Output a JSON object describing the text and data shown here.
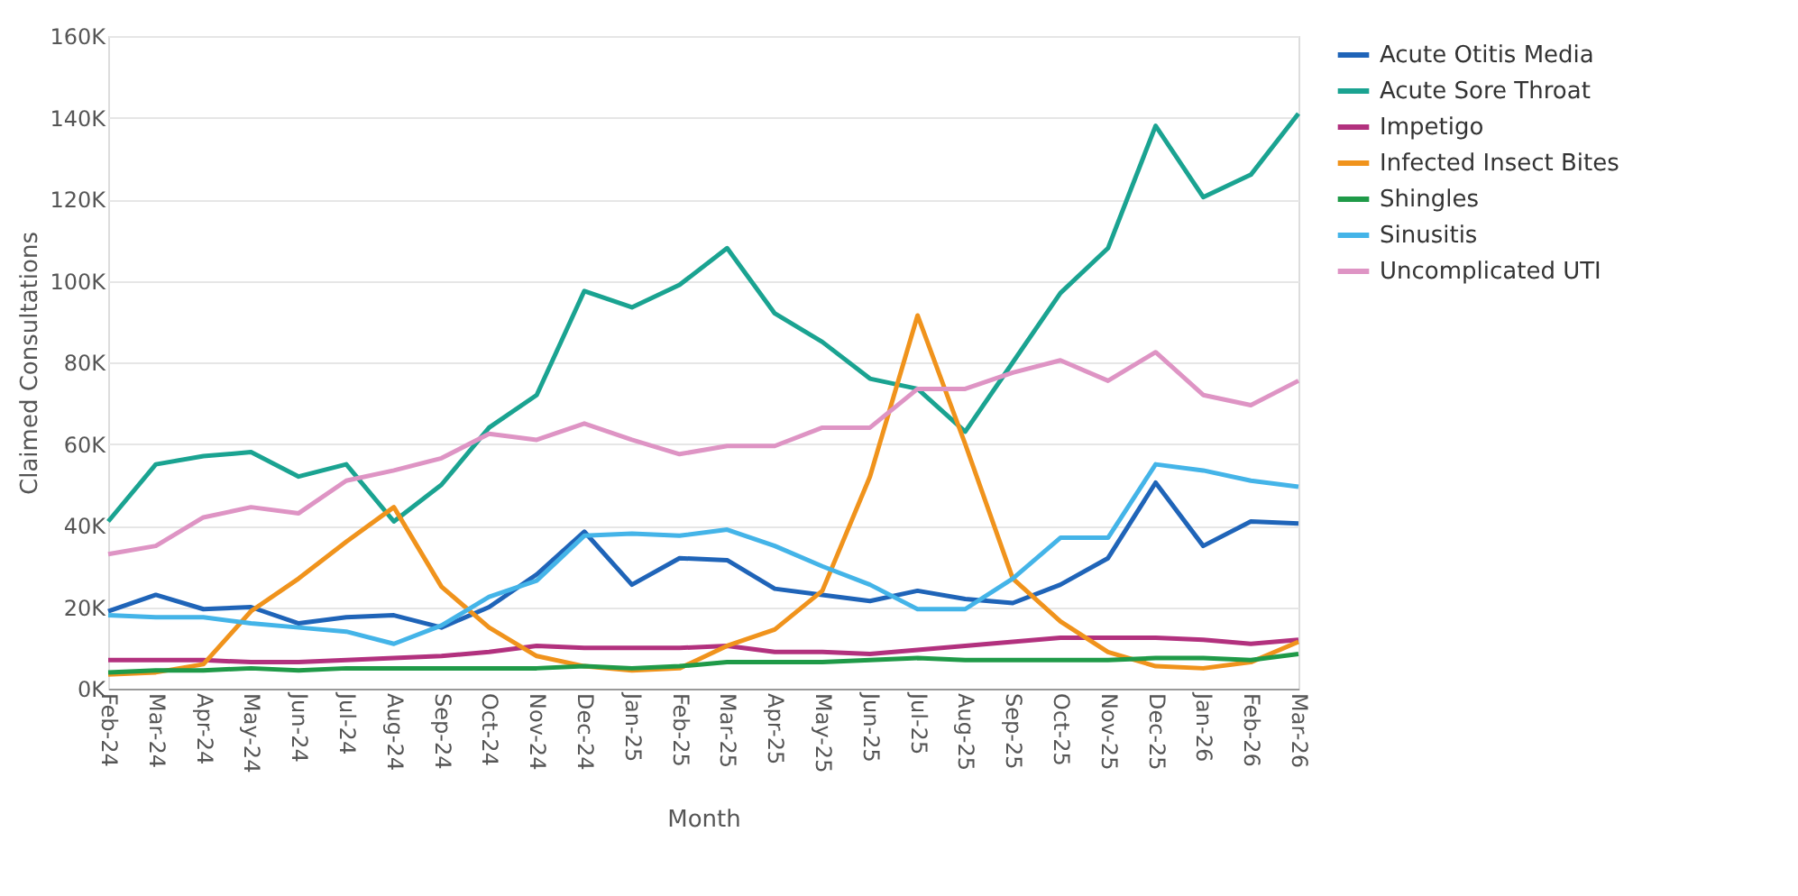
{
  "chart_data": {
    "type": "line",
    "xlabel": "Month",
    "ylabel": "Claimed Consultations",
    "categories": [
      "Feb-24",
      "Mar-24",
      "Apr-24",
      "May-24",
      "Jun-24",
      "Jul-24",
      "Aug-24",
      "Sep-24",
      "Oct-24",
      "Nov-24",
      "Dec-24",
      "Jan-25",
      "Feb-25",
      "Mar-25",
      "Apr-25",
      "May-25",
      "Jun-25",
      "Jul-25",
      "Aug-25",
      "Sep-25",
      "Oct-25",
      "Nov-25",
      "Dec-25",
      "Jan-26",
      "Feb-26",
      "Mar-26"
    ],
    "series": [
      {
        "name": "Acute Otitis Media",
        "color": "#1f64b8",
        "values": [
          19000,
          23000,
          19500,
          20000,
          16000,
          17500,
          18000,
          15000,
          20000,
          28000,
          38500,
          25500,
          32000,
          31500,
          24500,
          23000,
          21500,
          24000,
          22000,
          21000,
          25500,
          32000,
          50500,
          35000,
          41000,
          40500
        ]
      },
      {
        "name": "Acute Sore Throat",
        "color": "#1aa391",
        "values": [
          41000,
          55000,
          57000,
          58000,
          52000,
          55000,
          41000,
          50000,
          64000,
          72000,
          97500,
          93500,
          99000,
          108000,
          92000,
          85000,
          76000,
          73500,
          63000,
          80000,
          97000,
          108000,
          138000,
          120500,
          126000,
          141000
        ]
      },
      {
        "name": "Impetigo",
        "color": "#b2317e",
        "values": [
          7000,
          7000,
          7000,
          6500,
          6500,
          7000,
          7500,
          8000,
          9000,
          10500,
          10000,
          10000,
          10000,
          10500,
          9000,
          9000,
          8500,
          9500,
          10500,
          11500,
          12500,
          12500,
          12500,
          12000,
          11000,
          12000
        ]
      },
      {
        "name": "Infected Insect Bites",
        "color": "#f0931c",
        "values": [
          3500,
          4000,
          6000,
          19000,
          27000,
          36000,
          44500,
          25000,
          15000,
          8000,
          5500,
          4500,
          5000,
          10500,
          14500,
          24000,
          52000,
          91500,
          60000,
          27000,
          16500,
          9000,
          5500,
          5000,
          6500,
          11500
        ]
      },
      {
        "name": "Shingles",
        "color": "#1f9a48",
        "values": [
          4000,
          4500,
          4500,
          5000,
          4500,
          5000,
          5000,
          5000,
          5000,
          5000,
          5500,
          5000,
          5500,
          6500,
          6500,
          6500,
          7000,
          7500,
          7000,
          7000,
          7000,
          7000,
          7500,
          7500,
          7000,
          8500
        ]
      },
      {
        "name": "Sinusitis",
        "color": "#44b4e8",
        "values": [
          18000,
          17500,
          17500,
          16000,
          15000,
          14000,
          11000,
          15500,
          22500,
          26500,
          37500,
          38000,
          37500,
          39000,
          35000,
          30000,
          25500,
          19500,
          19500,
          27000,
          37000,
          37000,
          55000,
          53500,
          51000,
          49500
        ]
      },
      {
        "name": "Uncomplicated UTI",
        "color": "#de94c4",
        "values": [
          33000,
          35000,
          42000,
          44500,
          43000,
          51000,
          53500,
          56500,
          62500,
          61000,
          65000,
          61000,
          57500,
          59500,
          59500,
          64000,
          64000,
          73500,
          73500,
          77500,
          80500,
          75500,
          82500,
          72000,
          69500,
          75500
        ]
      }
    ],
    "ylim": [
      0,
      160000
    ],
    "yticks": [
      {
        "value": 0,
        "label": "0K"
      },
      {
        "value": 20000,
        "label": "20K"
      },
      {
        "value": 40000,
        "label": "40K"
      },
      {
        "value": 60000,
        "label": "60K"
      },
      {
        "value": 80000,
        "label": "80K"
      },
      {
        "value": 100000,
        "label": "100K"
      },
      {
        "value": 120000,
        "label": "120K"
      },
      {
        "value": 140000,
        "label": "140K"
      },
      {
        "value": 160000,
        "label": "160K"
      }
    ],
    "grid": "y",
    "legend": "right",
    "marker": "none",
    "line_style": "solid"
  }
}
